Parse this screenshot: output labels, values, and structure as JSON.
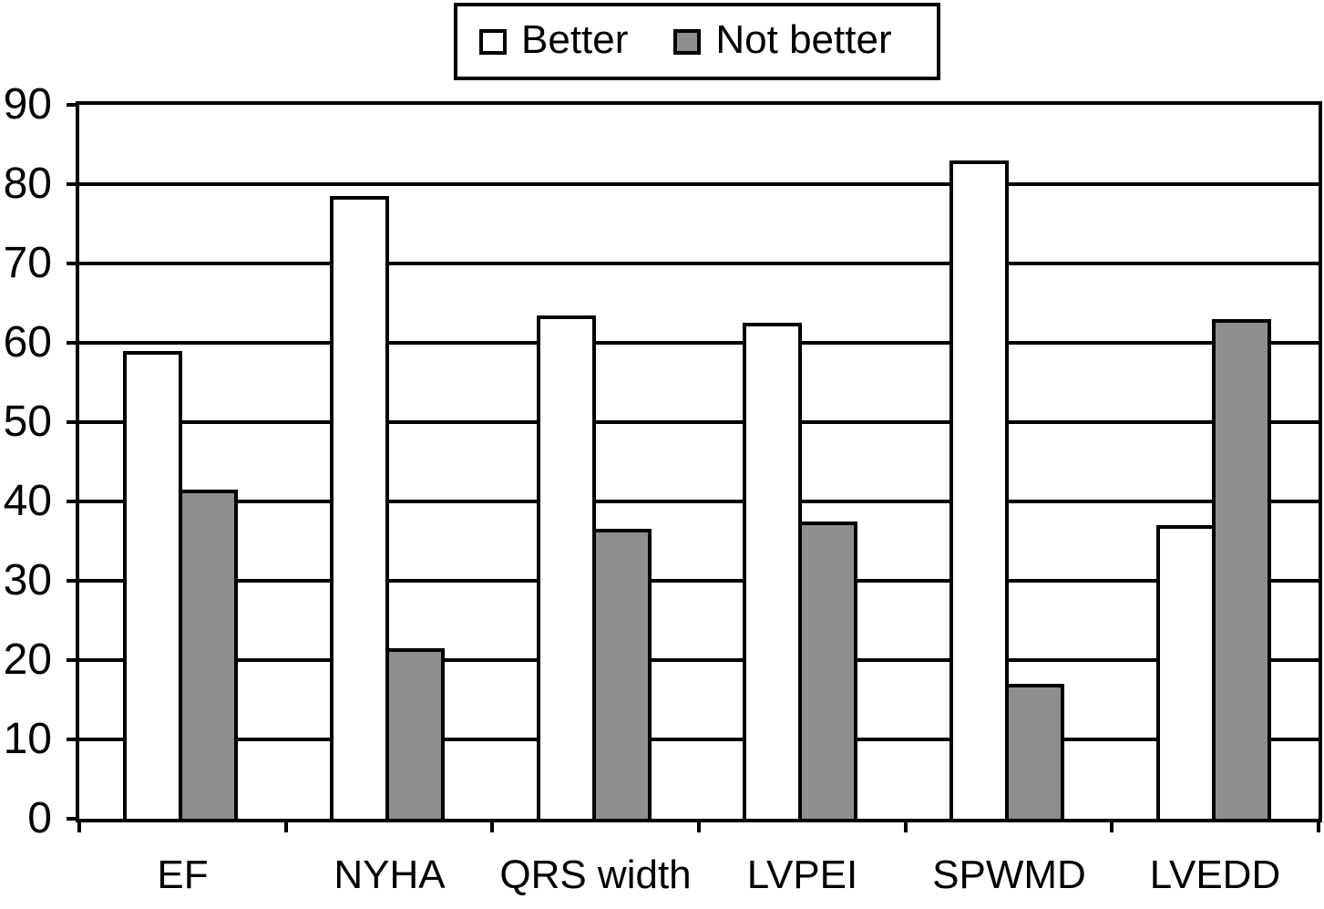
{
  "figure": {
    "background": "#ffffff",
    "line_color": "#000000"
  },
  "chart_data": {
    "type": "bar",
    "title": "",
    "xlabel": "",
    "ylabel": "",
    "categories": [
      "EF",
      "NYHA",
      "QRS width",
      "LVPEI",
      "SPWMD",
      "LVEDD"
    ],
    "series": [
      {
        "name": "Better",
        "color": "#ffffff",
        "values": [
          59,
          78.5,
          63.5,
          62.5,
          83,
          37
        ]
      },
      {
        "name": "Not better",
        "color": "#8e8e8e",
        "values": [
          41.5,
          21.5,
          36.5,
          37.5,
          17,
          63
        ]
      }
    ],
    "ylim": [
      0,
      90
    ],
    "yticks": [
      0,
      10,
      20,
      30,
      40,
      50,
      60,
      70,
      80,
      90
    ],
    "grid": true,
    "legend_position": "top-center",
    "bar_outline_color": "#000000"
  }
}
